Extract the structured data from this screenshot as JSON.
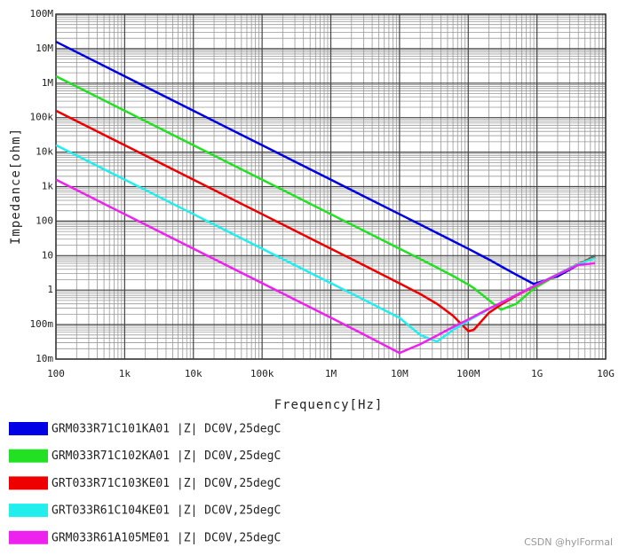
{
  "chart_data": {
    "type": "line",
    "xlabel": "Frequency[Hz]",
    "ylabel": "Impedance[ohm]",
    "log_x": true,
    "log_y": true,
    "grid": true,
    "minor_grid": true,
    "legend": "bottom",
    "xlim": [
      100,
      10000000000
    ],
    "ylim": [
      0.01,
      100000000
    ],
    "xticks": [
      100,
      {
        "value": 1000,
        "label": "1k"
      },
      {
        "value": 10000,
        "label": "10k"
      },
      {
        "value": 100000,
        "label": "100k"
      },
      {
        "value": 1000000,
        "label": "1M"
      },
      {
        "value": 10000000,
        "label": "10M"
      },
      {
        "value": 100000000,
        "label": "100M"
      },
      {
        "value": 1000000000,
        "label": "1G"
      },
      {
        "value": 10000000000,
        "label": "10G"
      }
    ],
    "yticks": [
      {
        "value": 0.01,
        "label": "10m"
      },
      {
        "value": 0.1,
        "label": "100m"
      },
      1,
      10,
      100,
      {
        "value": 1000,
        "label": "1k"
      },
      {
        "value": 10000,
        "label": "10k"
      },
      {
        "value": 100000,
        "label": "100k"
      },
      {
        "value": 1000000,
        "label": "1M"
      },
      {
        "value": 10000000,
        "label": "10M"
      },
      {
        "value": 100000000,
        "label": "100M"
      }
    ],
    "x": [
      100,
      1000,
      10000,
      100000,
      1000000,
      3000000,
      10000000,
      20000000,
      35000000,
      60000000,
      100000000,
      120000000,
      200000000,
      300000000,
      500000000,
      900000000,
      2000000000,
      4000000000,
      7000000000
    ],
    "series": [
      {
        "name": "GRM033R71C101KA01 |Z| DC0V,25degC",
        "color": "#0000e6",
        "values": [
          15900000,
          1590000,
          159000,
          15900,
          1590,
          530,
          159,
          79.6,
          45.5,
          26.5,
          15.8,
          13.1,
          7.7,
          4.9,
          2.8,
          1.5,
          2.5,
          5.4,
          10
        ]
      },
      {
        "name": "GRM033R71C102KA01 |Z| DC0V,25degC",
        "color": "#22e022",
        "values": [
          1590000,
          159000,
          15900,
          1590,
          159,
          53,
          15.9,
          7.96,
          4.5,
          2.57,
          1.45,
          1.15,
          0.51,
          0.27,
          0.4,
          1.1,
          2.8,
          5.7,
          9.5
        ]
      },
      {
        "name": "GRT033R71C103KE01 |Z| DC0V,25degC",
        "color": "#ee0000",
        "values": [
          159000,
          15900,
          1590,
          159,
          15.9,
          5.3,
          1.57,
          0.77,
          0.4,
          0.18,
          0.065,
          0.07,
          0.22,
          0.38,
          0.69,
          1.28,
          2.9,
          5.8,
          9
        ]
      },
      {
        "name": "GRT033R61C104KE01 |Z| DC0V,25degC",
        "color": "#22eeee",
        "values": [
          15900,
          1590,
          159,
          15.9,
          1.59,
          0.53,
          0.157,
          0.05,
          0.032,
          0.07,
          0.13,
          0.16,
          0.28,
          0.43,
          0.72,
          1.3,
          2.9,
          5.7,
          8.5
        ]
      },
      {
        "name": "GRM033R61A105ME01 |Z| DC0V,25degC",
        "color": "#ee22ee",
        "values": [
          1590,
          159,
          15.9,
          1.59,
          0.159,
          0.052,
          0.015,
          0.027,
          0.048,
          0.085,
          0.14,
          0.17,
          0.29,
          0.43,
          0.72,
          1.3,
          2.8,
          5.4,
          6
        ]
      }
    ]
  },
  "watermark": "CSDN @hylFormal"
}
